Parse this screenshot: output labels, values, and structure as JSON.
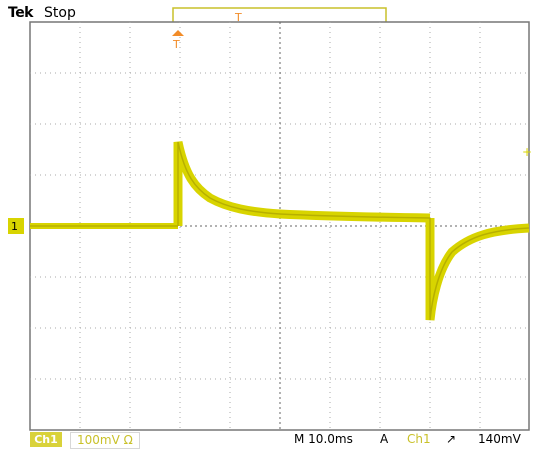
{
  "header": {
    "brand": "Tek",
    "status": "Stop"
  },
  "markers": {
    "trigger_position": "T",
    "trigger_position_ruler": "T",
    "channel_ground": "1"
  },
  "readout": {
    "channel_badge": "Ch1",
    "channel_scale": "100mV Ω",
    "timebase": "M 10.0ms",
    "trigger_mode": "A",
    "trigger_source": "Ch1",
    "trigger_slope": "↗",
    "trigger_level": "140mV"
  },
  "colors": {
    "trace": "#d8d400",
    "trace_core": "#b7b000",
    "grid": "#888888",
    "trigger_marker": "#f28c28",
    "channel_marker": "#d8d400"
  }
}
